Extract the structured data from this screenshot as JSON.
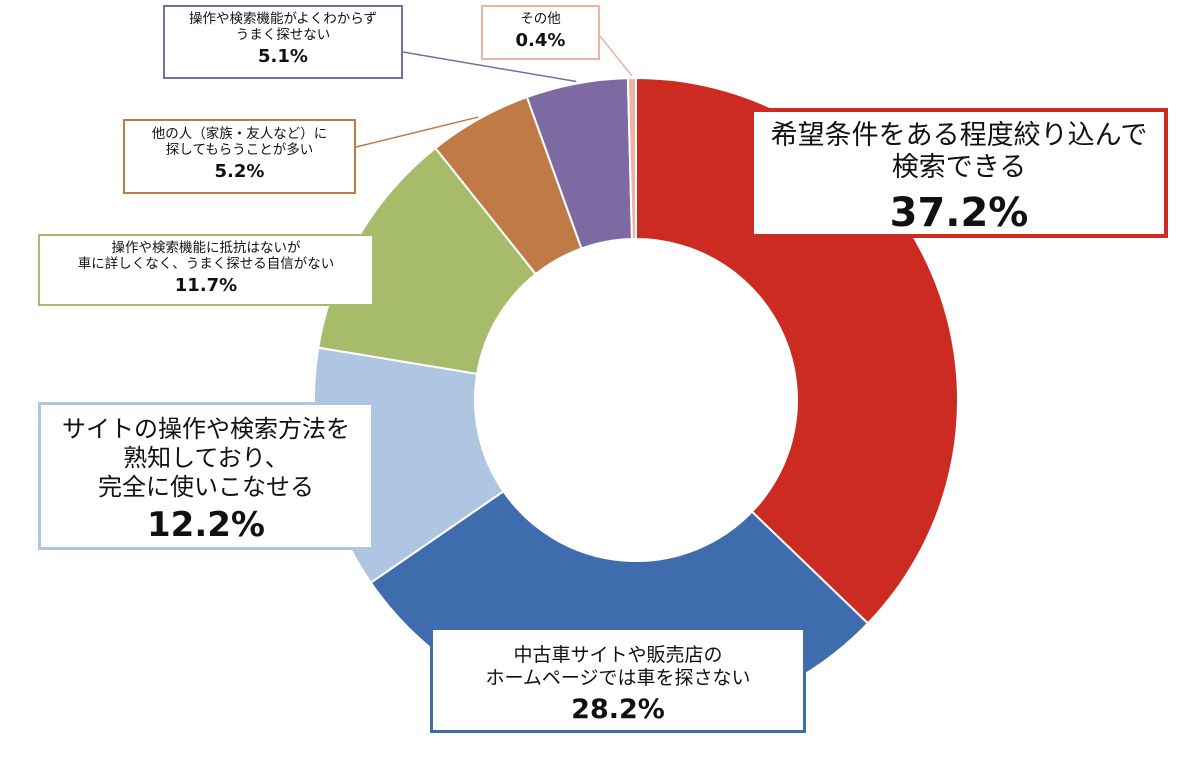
{
  "chart_data": {
    "type": "pie",
    "donut": true,
    "series": [
      {
        "label_lines": [
          "希望条件をある程度絞り込んで",
          "検索できる"
        ],
        "percent_label": "37.2%",
        "value": 37.2,
        "color": "#cc2b22"
      },
      {
        "label_lines": [
          "中古車サイトや販売店の",
          "ホームページでは車を探さない"
        ],
        "percent_label": "28.2%",
        "value": 28.2,
        "color": "#3f6cad"
      },
      {
        "label_lines": [
          "サイトの操作や検索方法を",
          "熟知しており、",
          "完全に使いこなせる"
        ],
        "percent_label": "12.2%",
        "value": 12.2,
        "color": "#aec6e2"
      },
      {
        "label_lines": [
          "操作や検索機能に抵抗はないが",
          "車に詳しくなく、うまく探せる自信がない"
        ],
        "percent_label": "11.7%",
        "value": 11.7,
        "color": "#a6bc6a"
      },
      {
        "label_lines": [
          "他の人（家族・友人など）に",
          "探してもらうことが多い"
        ],
        "percent_label": "5.2%",
        "value": 5.2,
        "color": "#c07a45"
      },
      {
        "label_lines": [
          "操作や検索機能がよくわからず",
          "うまく探せない"
        ],
        "percent_label": "5.1%",
        "value": 5.1,
        "color": "#7d6aa2"
      },
      {
        "label_lines": [
          "その他"
        ],
        "percent_label": "0.4%",
        "value": 0.4,
        "color": "#ecb3a4"
      }
    ]
  }
}
